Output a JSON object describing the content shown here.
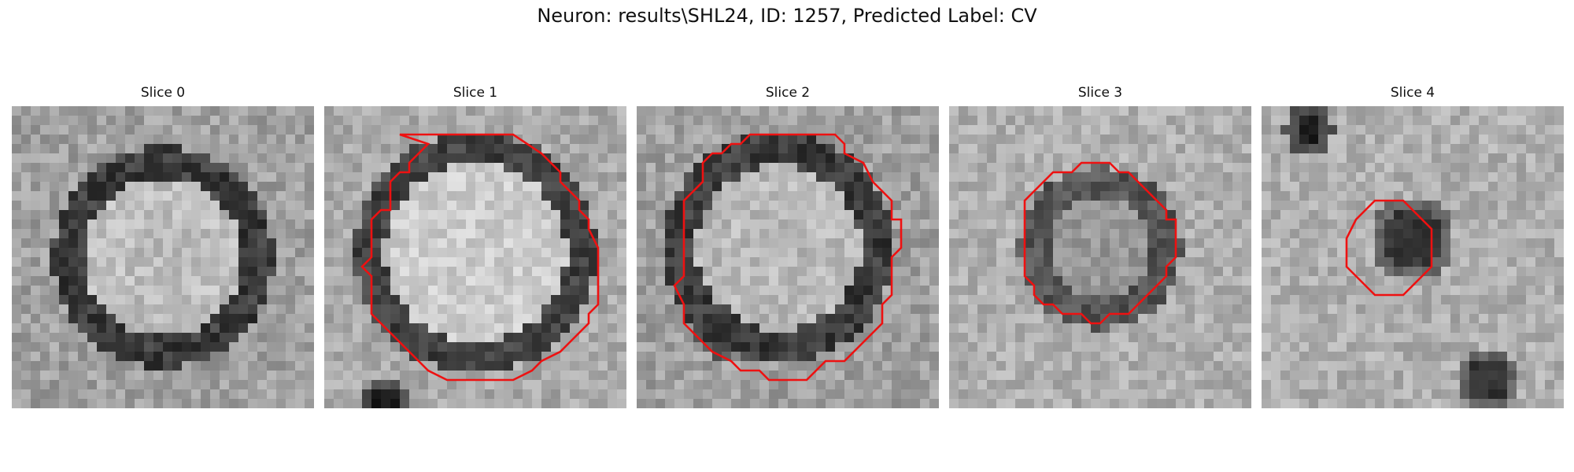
{
  "figure": {
    "title": "Neuron: results\\SHL24, ID: 1257, Predicted Label: CV"
  },
  "panels": [
    {
      "title": "Slice 0",
      "contour": false
    },
    {
      "title": "Slice 1",
      "contour": true
    },
    {
      "title": "Slice 2",
      "contour": true
    },
    {
      "title": "Slice 3",
      "contour": true
    },
    {
      "title": "Slice 4",
      "contour": true
    }
  ],
  "colors": {
    "contour": "#ee1111",
    "background": "#ffffff"
  }
}
